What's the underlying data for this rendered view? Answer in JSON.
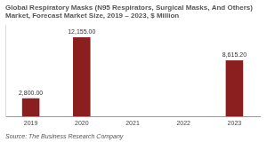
{
  "chart_data": {
    "type": "bar",
    "title": "Global Respiratory Masks (N95 Respirators, Surgical Masks, And Others) Market, Forecast Market Size, 2019 – 2023, $ Million",
    "source": "Source: The Business Research Company",
    "categories": [
      "2019",
      "2020",
      "2021",
      "2022",
      "2023"
    ],
    "values": [
      2800,
      12155,
      null,
      null,
      8615.2
    ],
    "value_labels": [
      "2,800.00",
      "12,155.00",
      null,
      null,
      "8,615.20"
    ],
    "color": "#8b1e1e",
    "ylim": [
      0,
      14000
    ],
    "grid": false,
    "data_labels": true,
    "tick_labels": "x"
  }
}
